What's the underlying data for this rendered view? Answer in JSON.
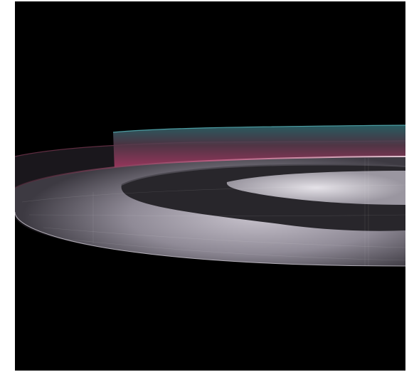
{
  "scene": {
    "background_color": "#000000",
    "page_color": "#ffffff",
    "palette": {
      "disc": "#d8d4dc",
      "disc_shadow": "#6e6a73",
      "dark_ring": "#2b2a2e",
      "magenta_band": "#c0406f",
      "cyan_band": "#3a8f96",
      "edge_glow": "#9c4a66"
    }
  }
}
